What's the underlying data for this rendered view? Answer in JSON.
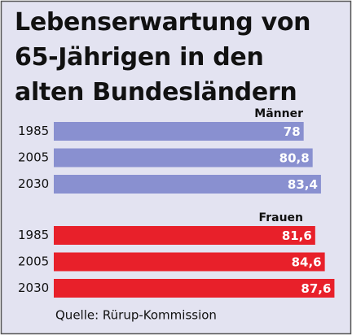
{
  "chart_data": {
    "type": "bar",
    "orientation": "horizontal",
    "title": "Lebenserwartung von 65-Jährigen in den alten Bundesländern",
    "categories": [
      "1985",
      "2005",
      "2030"
    ],
    "series": [
      {
        "name": "Männer",
        "color": "#8990d0",
        "values": [
          78,
          80.8,
          83.4
        ],
        "value_labels": [
          "78",
          "80,8",
          "83,4"
        ]
      },
      {
        "name": "Frauen",
        "color": "#e8202a",
        "values": [
          81.6,
          84.6,
          87.6
        ],
        "value_labels": [
          "81,6",
          "84,6",
          "87,6"
        ]
      }
    ],
    "xlim": [
      0,
      88
    ],
    "source": "Quelle: Rürup-Kommission"
  }
}
